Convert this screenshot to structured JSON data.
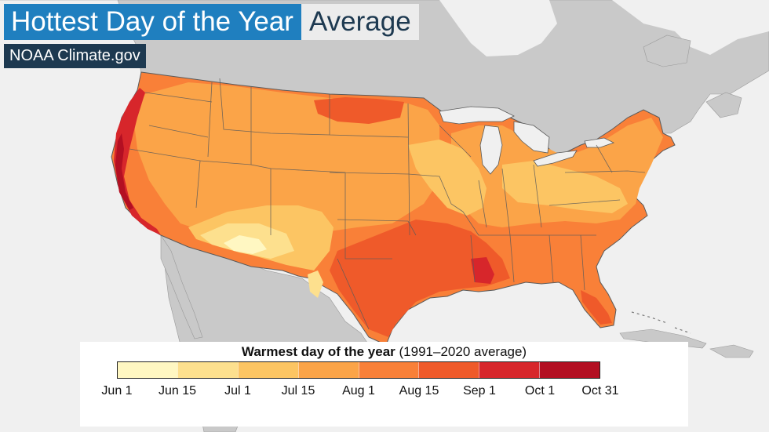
{
  "title": {
    "main": "Hottest Day of the Year",
    "sub": "Average"
  },
  "credit": "NOAA Climate.gov",
  "legend": {
    "title_bold": "Warmest day of the year",
    "title_rest": " (1991–2020 average)",
    "ticks": [
      "Jun 1",
      "Jun 15",
      "Jul 1",
      "Jul 15",
      "Aug 1",
      "Aug 15",
      "Sep 1",
      "Oct 1",
      "Oct 31"
    ],
    "colors": [
      "#fff7c2",
      "#fde08e",
      "#fcc563",
      "#fba448",
      "#f98038",
      "#ef5a2a",
      "#d7262b",
      "#b30f22"
    ]
  },
  "map_colors": {
    "ocean": "#f0f0f0",
    "land": "#c9c9c9",
    "border": "#5a5a5a"
  }
}
